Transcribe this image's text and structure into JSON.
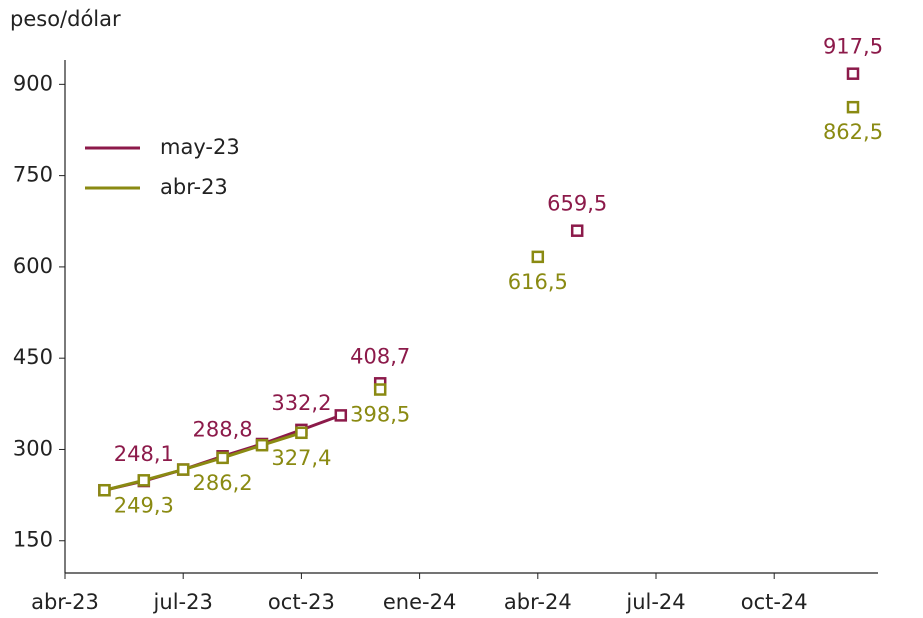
{
  "chart_data": {
    "type": "line",
    "y_label": "peso/dólar",
    "categories": [
      "abr-23",
      null,
      null,
      "jul-23",
      null,
      null,
      "oct-23",
      null,
      null,
      "ene-24",
      null,
      null,
      "abr-24",
      null,
      null,
      "jul-24",
      null,
      null,
      "oct-24",
      null,
      null
    ],
    "series": [
      {
        "name": "may-23",
        "color": "#8c1a4a",
        "values": [
          null,
          233,
          248.1,
          267,
          288.8,
          309,
          332.2,
          356,
          null,
          null,
          null,
          null,
          null,
          null,
          null,
          null,
          null,
          null,
          null,
          null,
          null
        ],
        "value_labels": [
          null,
          null,
          "248,1",
          null,
          "288,8",
          null,
          "332,2",
          null,
          null,
          null,
          null,
          null,
          null,
          null,
          null,
          null,
          null,
          null,
          null,
          null,
          null
        ],
        "points": [
          null,
          null,
          null,
          null,
          null,
          null,
          null,
          null,
          408.7,
          null,
          null,
          null,
          null,
          659.5,
          null,
          null,
          null,
          null,
          null,
          null,
          917.5
        ],
        "point_labels": [
          null,
          null,
          null,
          null,
          null,
          null,
          null,
          null,
          "408,7",
          null,
          null,
          null,
          null,
          "659,5",
          null,
          null,
          null,
          null,
          null,
          null,
          "917,5"
        ]
      },
      {
        "name": "abr-23",
        "color": "#8a8a12",
        "values": [
          null,
          233,
          249.3,
          267,
          286.2,
          307,
          327.4,
          null,
          null,
          null,
          null,
          null,
          null,
          null,
          null,
          null,
          null,
          null,
          null,
          null,
          null
        ],
        "value_labels": [
          null,
          null,
          "249,3",
          null,
          "286,2",
          null,
          "327,4",
          null,
          null,
          null,
          null,
          null,
          null,
          null,
          null,
          null,
          null,
          null,
          null,
          null,
          null
        ],
        "points": [
          null,
          null,
          null,
          null,
          null,
          null,
          null,
          null,
          398.5,
          null,
          null,
          null,
          616.5,
          null,
          null,
          null,
          null,
          null,
          null,
          null,
          862.5
        ],
        "point_labels": [
          null,
          null,
          null,
          null,
          null,
          null,
          null,
          null,
          "398,5",
          null,
          null,
          null,
          "616,5",
          null,
          null,
          null,
          null,
          null,
          null,
          null,
          "862,5"
        ]
      }
    ],
    "ylim": [
      97,
      940
    ],
    "yticks": [
      150,
      300,
      450,
      600,
      750,
      900
    ],
    "legend": "upper-left"
  }
}
